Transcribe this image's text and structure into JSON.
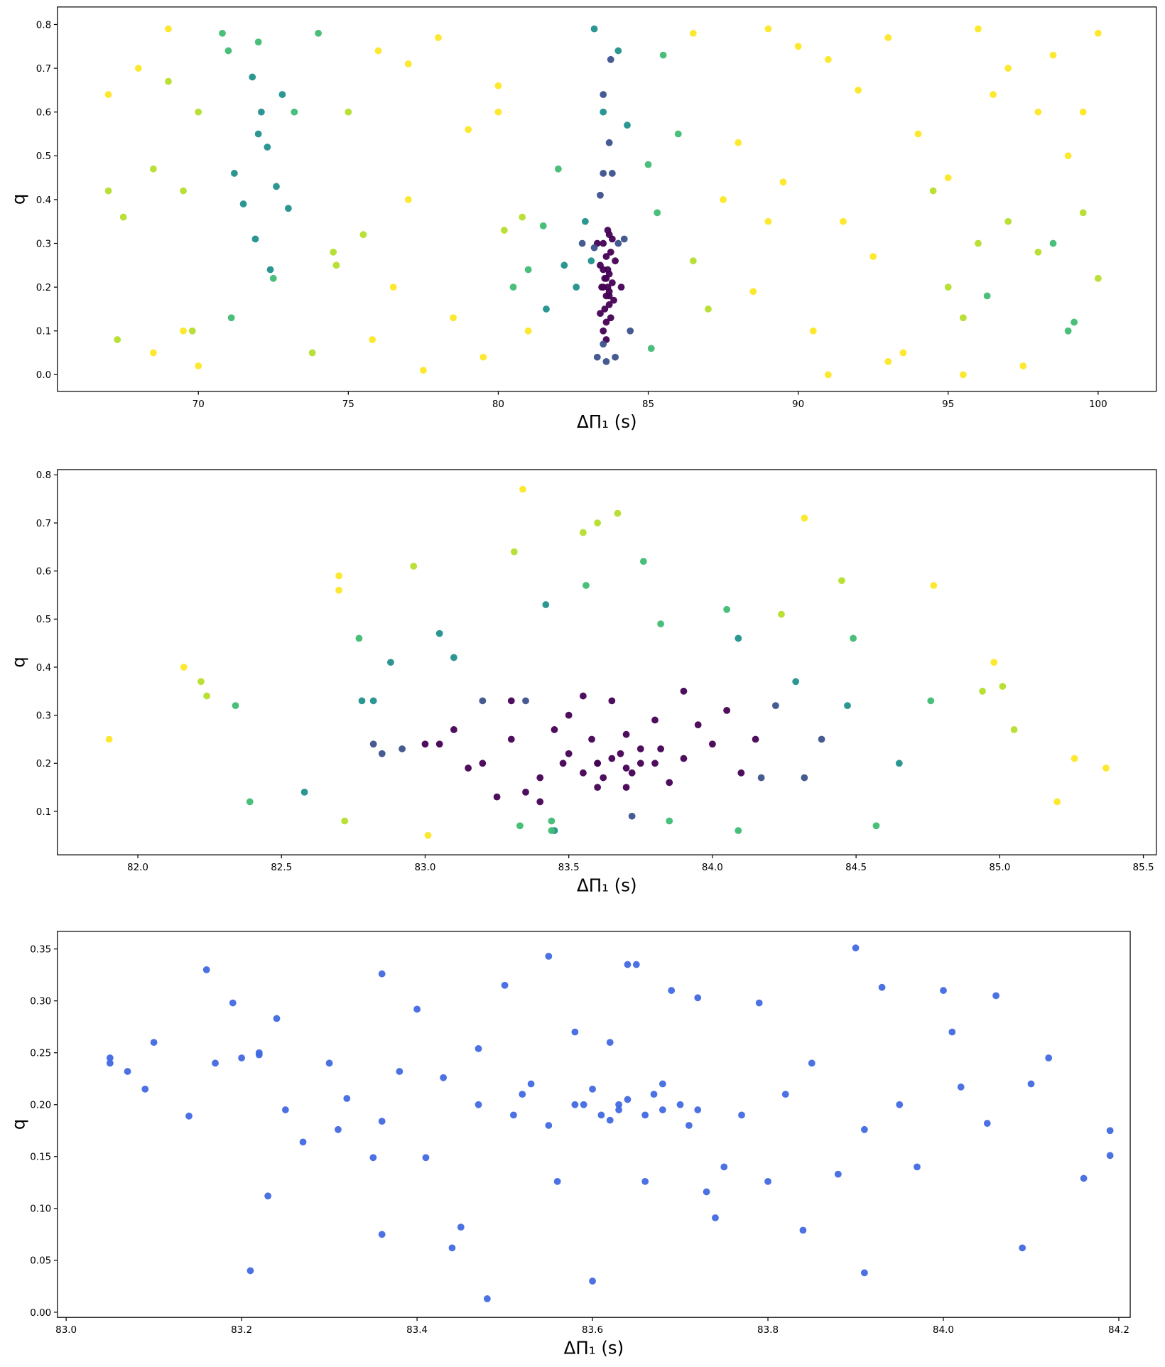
{
  "chart_data": [
    {
      "type": "scatter",
      "xlabel": "ΔΠ₁ (s)",
      "ylabel": "q",
      "xlim": [
        65.3,
        101.94
      ],
      "ylim": [
        -0.038,
        0.84
      ],
      "xticks": [
        70,
        75,
        80,
        85,
        90,
        95,
        100
      ],
      "yticks": [
        {
          "value": 0,
          "label": "0.0"
        },
        0.1,
        0.2,
        0.3,
        0.4,
        0.5,
        0.6,
        0.7,
        0.8
      ],
      "series": [
        {
          "color": "#440154",
          "x": [
            83.5,
            83.6,
            83.7,
            83.8,
            83.4,
            83.55,
            83.65,
            83.75,
            83.5,
            83.6,
            83.7,
            83.45,
            83.85,
            83.6,
            83.7,
            83.5,
            83.65,
            83.8,
            83.4,
            83.9,
            83.6,
            83.7,
            83.55,
            83.75,
            83.3,
            84.1,
            83.6,
            83.7,
            83.5,
            83.65
          ],
          "y": [
            0.2,
            0.22,
            0.18,
            0.21,
            0.25,
            0.15,
            0.24,
            0.28,
            0.3,
            0.12,
            0.19,
            0.2,
            0.17,
            0.27,
            0.23,
            0.1,
            0.33,
            0.31,
            0.14,
            0.26,
            0.08,
            0.32,
            0.22,
            0.13,
            0.3,
            0.2,
            0.18,
            0.16,
            0.24,
            0.2
          ]
        },
        {
          "color": "#3b528b",
          "x": [
            83.4,
            83.5,
            83.8,
            83.7,
            83.2,
            84.2,
            83.3,
            83.6,
            83.9,
            83.5,
            82.8,
            84.4,
            83.5,
            83.75,
            84.0
          ],
          "y": [
            0.41,
            0.46,
            0.46,
            0.53,
            0.29,
            0.31,
            0.04,
            0.03,
            0.04,
            0.07,
            0.3,
            0.1,
            0.64,
            0.72,
            0.3
          ]
        },
        {
          "color": "#21918c",
          "x": [
            71.2,
            71.5,
            72.0,
            72.3,
            72.6,
            73.0,
            71.8,
            72.1,
            72.8,
            83.2,
            83.5,
            82.6,
            82.9,
            83.1,
            82.2,
            84.3,
            84.0,
            81.6,
            72.4,
            71.9
          ],
          "y": [
            0.46,
            0.39,
            0.55,
            0.52,
            0.43,
            0.38,
            0.68,
            0.6,
            0.64,
            0.79,
            0.6,
            0.2,
            0.35,
            0.26,
            0.25,
            0.57,
            0.74,
            0.15,
            0.24,
            0.31
          ]
        },
        {
          "color": "#3fbc73",
          "x": [
            70.8,
            71.0,
            72.0,
            72.5,
            73.2,
            74.0,
            81.0,
            81.5,
            82.0,
            85.0,
            85.3,
            85.5,
            99.0,
            99.2,
            98.5,
            96.3,
            86.0,
            85.1,
            80.5,
            71.1
          ],
          "y": [
            0.78,
            0.74,
            0.76,
            0.22,
            0.6,
            0.78,
            0.24,
            0.34,
            0.47,
            0.48,
            0.37,
            0.73,
            0.1,
            0.12,
            0.3,
            0.18,
            0.55,
            0.06,
            0.2,
            0.13
          ]
        },
        {
          "color": "#b5de2b",
          "x": [
            67,
            67.5,
            68.5,
            69,
            69.5,
            70,
            75,
            75.5,
            74.5,
            73.8,
            80.8,
            86.5,
            87,
            95,
            95.5,
            96,
            97,
            98,
            99.5,
            100,
            94.5,
            67.3,
            69.8,
            74.6,
            80.2
          ],
          "y": [
            0.42,
            0.36,
            0.47,
            0.67,
            0.42,
            0.6,
            0.6,
            0.32,
            0.28,
            0.05,
            0.36,
            0.26,
            0.15,
            0.2,
            0.13,
            0.3,
            0.35,
            0.28,
            0.37,
            0.22,
            0.42,
            0.08,
            0.1,
            0.25,
            0.33
          ]
        },
        {
          "color": "#fde725",
          "x": [
            67,
            68,
            69,
            70,
            76,
            77,
            78,
            79,
            80,
            88,
            89,
            90,
            91,
            92,
            93,
            94,
            95,
            96,
            97,
            98,
            99,
            100,
            76.5,
            77.5,
            78.5,
            79.5,
            87.5,
            88.5,
            89.5,
            90.5,
            91.5,
            92.5,
            93.5,
            95.5,
            97.5,
            98.5,
            86.5,
            81,
            80,
            68.5,
            69.5,
            75.8,
            77,
            91,
            93,
            89,
            96.5,
            99.5
          ],
          "y": [
            0.64,
            0.7,
            0.79,
            0.02,
            0.74,
            0.71,
            0.77,
            0.56,
            0.66,
            0.53,
            0.79,
            0.75,
            0.72,
            0.65,
            0.77,
            0.55,
            0.45,
            0.79,
            0.7,
            0.6,
            0.5,
            0.78,
            0.2,
            0.01,
            0.13,
            0.04,
            0.4,
            0.19,
            0.44,
            0.1,
            0.35,
            0.27,
            0.05,
            0.0,
            0.02,
            0.73,
            0.78,
            0.1,
            0.6,
            0.05,
            0.1,
            0.08,
            0.4,
            0.0,
            0.03,
            0.35,
            0.64,
            0.6
          ]
        }
      ]
    },
    {
      "type": "scatter",
      "xlabel": "ΔΠ₁ (s)",
      "ylabel": "q",
      "xlim": [
        81.72,
        85.545
      ],
      "ylim": [
        0.0096,
        0.811
      ],
      "xticks": [
        {
          "value": 82,
          "label": "82.0"
        },
        82.5,
        {
          "value": 83,
          "label": "83.0"
        },
        83.5,
        {
          "value": 84,
          "label": "84.0"
        },
        84.5,
        {
          "value": 85,
          "label": "85.0"
        },
        85.5
      ],
      "yticks": [
        0.1,
        0.2,
        0.3,
        0.4,
        0.5,
        0.6,
        0.7,
        0.8
      ],
      "series": [
        {
          "color": "#440154",
          "x": [
            83.6,
            83.7,
            83.65,
            83.5,
            83.8,
            83.55,
            83.75,
            83.4,
            83.9,
            83.3,
            84.0,
            83.2,
            84.1,
            83.6,
            83.7,
            83.45,
            83.85,
            83.35,
            83.95,
            83.25,
            84.15,
            83.15,
            83.05,
            83.55,
            83.65,
            83.7,
            83.5,
            83.8,
            83.6,
            83.75,
            83.4,
            83.9,
            83.3,
            83.58,
            83.68,
            83.62,
            83.72,
            83.48,
            83.82,
            84.05,
            83.0,
            83.1
          ],
          "y": [
            0.2,
            0.19,
            0.21,
            0.22,
            0.2,
            0.18,
            0.23,
            0.17,
            0.21,
            0.25,
            0.24,
            0.2,
            0.18,
            0.15,
            0.26,
            0.27,
            0.16,
            0.14,
            0.28,
            0.13,
            0.25,
            0.19,
            0.24,
            0.34,
            0.33,
            0.15,
            0.3,
            0.29,
            0.2,
            0.2,
            0.12,
            0.35,
            0.33,
            0.25,
            0.22,
            0.17,
            0.18,
            0.2,
            0.23,
            0.31,
            0.24,
            0.27
          ]
        },
        {
          "color": "#3b528b",
          "x": [
            82.82,
            82.85,
            82.92,
            83.35,
            83.72,
            84.22,
            84.32,
            84.38,
            84.17,
            83.2
          ],
          "y": [
            0.24,
            0.22,
            0.23,
            0.33,
            0.09,
            0.32,
            0.17,
            0.25,
            0.17,
            0.33
          ]
        },
        {
          "color": "#21918c",
          "x": [
            82.58,
            82.78,
            82.82,
            82.88,
            83.1,
            83.42,
            84.09,
            84.29,
            84.47,
            84.65,
            83.05,
            83.45
          ],
          "y": [
            0.14,
            0.33,
            0.33,
            0.41,
            0.42,
            0.53,
            0.46,
            0.37,
            0.32,
            0.2,
            0.47,
            0.06
          ]
        },
        {
          "color": "#3fbc73",
          "x": [
            82.34,
            82.77,
            83.33,
            83.44,
            83.56,
            83.76,
            83.82,
            83.85,
            84.05,
            84.09,
            84.49,
            84.57,
            84.76,
            82.39,
            83.44
          ],
          "y": [
            0.32,
            0.46,
            0.07,
            0.08,
            0.57,
            0.62,
            0.49,
            0.08,
            0.52,
            0.06,
            0.46,
            0.07,
            0.33,
            0.12,
            0.06
          ]
        },
        {
          "color": "#b5de2b",
          "x": [
            82.22,
            82.24,
            82.72,
            82.96,
            83.31,
            83.55,
            83.6,
            83.67,
            84.24,
            84.45,
            84.94,
            85.05,
            85.01
          ],
          "y": [
            0.37,
            0.34,
            0.08,
            0.61,
            0.64,
            0.68,
            0.7,
            0.72,
            0.51,
            0.58,
            0.35,
            0.27,
            0.36
          ]
        },
        {
          "color": "#fde725",
          "x": [
            81.9,
            82.16,
            82.7,
            82.7,
            83.01,
            83.34,
            84.32,
            84.77,
            84.98,
            85.2,
            85.26,
            85.37
          ],
          "y": [
            0.25,
            0.4,
            0.59,
            0.56,
            0.05,
            0.77,
            0.71,
            0.57,
            0.41,
            0.12,
            0.21,
            0.19
          ]
        }
      ]
    },
    {
      "type": "scatter",
      "xlabel": "ΔΠ₁ (s)",
      "ylabel": "q",
      "xlim": [
        82.99,
        84.213
      ],
      "ylim": [
        -0.005,
        0.367
      ],
      "xticks": [
        {
          "value": 83,
          "label": "83.0"
        },
        83.2,
        83.4,
        83.6,
        83.8,
        {
          "value": 84,
          "label": "84.0"
        },
        84.2
      ],
      "yticks": [
        {
          "value": 0,
          "label": "0.00"
        },
        0.05,
        {
          "value": 0.1,
          "label": "0.10"
        },
        0.15,
        {
          "value": 0.2,
          "label": "0.20"
        },
        0.25,
        {
          "value": 0.3,
          "label": "0.30"
        },
        0.35
      ],
      "series": [
        {
          "color": "#4169e1",
          "x": [
            83.05,
            83.05,
            83.07,
            83.09,
            83.1,
            83.14,
            83.16,
            83.17,
            83.19,
            83.2,
            83.22,
            83.23,
            83.24,
            83.25,
            83.27,
            83.3,
            83.31,
            83.32,
            83.36,
            83.36,
            83.38,
            83.4,
            83.41,
            83.43,
            83.44,
            83.45,
            83.47,
            83.48,
            83.5,
            83.51,
            83.53,
            83.55,
            83.56,
            83.58,
            83.59,
            83.6,
            83.61,
            83.62,
            83.63,
            83.64,
            83.65,
            83.66,
            83.67,
            83.68,
            83.69,
            83.7,
            83.71,
            83.72,
            83.73,
            83.74,
            83.75,
            83.77,
            83.79,
            83.8,
            83.82,
            83.84,
            83.85,
            83.88,
            83.9,
            83.91,
            83.93,
            83.95,
            83.97,
            84.0,
            84.01,
            84.05,
            84.06,
            84.09,
            84.1,
            84.12,
            84.16,
            84.19,
            84.19,
            83.63,
            83.66,
            83.6,
            83.62,
            83.64,
            83.68,
            83.58,
            83.55,
            83.72,
            83.52,
            83.47,
            83.36,
            83.21,
            83.91,
            84.02,
            83.22,
            83.35
          ],
          "y": [
            0.245,
            0.24,
            0.232,
            0.215,
            0.26,
            0.189,
            0.33,
            0.24,
            0.298,
            0.245,
            0.248,
            0.112,
            0.283,
            0.195,
            0.164,
            0.24,
            0.176,
            0.206,
            0.326,
            0.075,
            0.232,
            0.292,
            0.149,
            0.226,
            0.062,
            0.082,
            0.254,
            0.013,
            0.315,
            0.19,
            0.22,
            0.343,
            0.126,
            0.27,
            0.2,
            0.03,
            0.19,
            0.26,
            0.2,
            0.335,
            0.335,
            0.126,
            0.21,
            0.22,
            0.31,
            0.2,
            0.18,
            0.303,
            0.116,
            0.091,
            0.14,
            0.19,
            0.298,
            0.126,
            0.21,
            0.079,
            0.24,
            0.133,
            0.351,
            0.038,
            0.313,
            0.2,
            0.14,
            0.31,
            0.27,
            0.182,
            0.305,
            0.062,
            0.22,
            0.245,
            0.129,
            0.175,
            0.151,
            0.195,
            0.19,
            0.215,
            0.185,
            0.205,
            0.195,
            0.2,
            0.18,
            0.195,
            0.21,
            0.2,
            0.184,
            0.04,
            0.176,
            0.217,
            0.25,
            0.149
          ]
        }
      ]
    }
  ]
}
